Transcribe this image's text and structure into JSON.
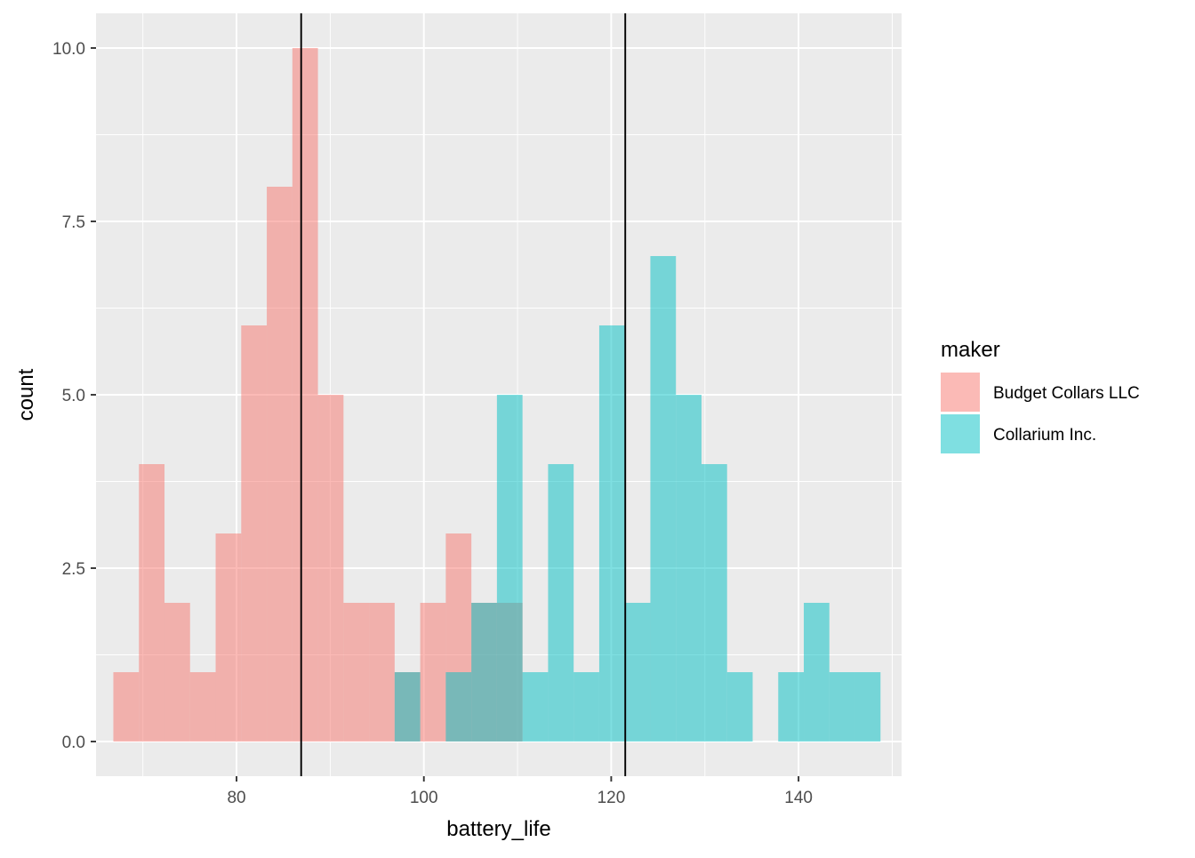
{
  "chart_data": {
    "type": "bar",
    "subtype": "overlapping-histogram",
    "xlabel": "battery_life",
    "ylabel": "count",
    "xlim": [
      65,
      151
    ],
    "ylim": [
      -0.5,
      10.5
    ],
    "x_ticks": [
      80,
      100,
      120,
      140
    ],
    "x_tick_labels": [
      "80",
      "100",
      "120",
      "140"
    ],
    "y_ticks": [
      0,
      2.5,
      5,
      7.5,
      10
    ],
    "y_tick_labels": [
      "0.0",
      "2.5",
      "5.0",
      "7.5",
      "10.0"
    ],
    "grid": true,
    "bin_width": 2.73,
    "bin_start": 66.85,
    "series": [
      {
        "name": "Budget Collars LLC",
        "color": "#F8766D",
        "values": [
          1,
          4,
          2,
          1,
          3,
          6,
          8,
          10,
          5,
          2,
          2,
          1,
          2,
          3,
          2,
          2,
          0,
          0,
          0,
          0,
          0,
          0,
          0,
          0,
          0,
          0,
          0,
          0,
          0,
          0
        ]
      },
      {
        "name": "Collarium Inc.",
        "color": "#00BFC4",
        "values": [
          0,
          0,
          0,
          0,
          0,
          0,
          0,
          0,
          0,
          0,
          0,
          1,
          0,
          1,
          2,
          5,
          1,
          4,
          1,
          6,
          2,
          7,
          5,
          4,
          1,
          0,
          1,
          2,
          1,
          1
        ]
      }
    ],
    "vlines": [
      86.9,
      121.5
    ],
    "legend": {
      "title": "maker",
      "position": "right"
    }
  }
}
